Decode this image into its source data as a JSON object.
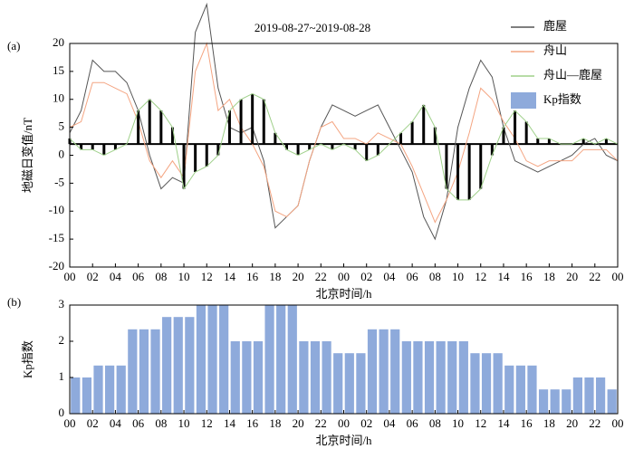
{
  "chart_data": [
    {
      "type": "line",
      "panel_label": "(a)",
      "title": "2019-08-27~2019-08-28",
      "ylabel": "地磁日变值/nT",
      "xlabel": "北京时间/h",
      "xlim": [
        0,
        48
      ],
      "ylim": [
        -20,
        20
      ],
      "yticks": [
        -20,
        -15,
        -10,
        -5,
        0,
        5,
        10,
        15,
        20
      ],
      "xticks": [
        {
          "value": 0,
          "label": "00"
        },
        {
          "value": 2,
          "label": "02"
        },
        {
          "value": 4,
          "label": "04"
        },
        {
          "value": 6,
          "label": "06"
        },
        {
          "value": 8,
          "label": "08"
        },
        {
          "value": 10,
          "label": "10"
        },
        {
          "value": 12,
          "label": "12"
        },
        {
          "value": 14,
          "label": "14"
        },
        {
          "value": 16,
          "label": "16"
        },
        {
          "value": 18,
          "label": "18"
        },
        {
          "value": 20,
          "label": "20"
        },
        {
          "value": 22,
          "label": "22"
        },
        {
          "value": 24,
          "label": "00"
        },
        {
          "value": 26,
          "label": "02"
        },
        {
          "value": 28,
          "label": "04"
        },
        {
          "value": 30,
          "label": "06"
        },
        {
          "value": 32,
          "label": "08"
        },
        {
          "value": 34,
          "label": "10"
        },
        {
          "value": 36,
          "label": "12"
        },
        {
          "value": 38,
          "label": "14"
        },
        {
          "value": 40,
          "label": "16"
        },
        {
          "value": 42,
          "label": "18"
        },
        {
          "value": 44,
          "label": "20"
        },
        {
          "value": 46,
          "label": "22"
        },
        {
          "value": 48,
          "label": "00"
        }
      ],
      "reference_line": 2,
      "x": [
        0,
        1,
        2,
        3,
        4,
        5,
        6,
        7,
        8,
        9,
        10,
        11,
        12,
        13,
        14,
        15,
        16,
        17,
        18,
        19,
        20,
        21,
        22,
        23,
        24,
        25,
        26,
        27,
        28,
        29,
        30,
        31,
        32,
        33,
        34,
        35,
        36,
        37,
        38,
        39,
        40,
        41,
        42,
        43,
        44,
        45,
        46,
        47,
        48
      ],
      "series": [
        {
          "name": "鹿屋",
          "color": "#555555",
          "values": [
            4,
            8,
            17,
            15,
            15,
            13,
            8,
            0,
            -6,
            -4,
            -5,
            22,
            27,
            12,
            5,
            4,
            5,
            -1,
            -13,
            -11,
            -9,
            -1,
            5,
            9,
            8,
            7,
            8,
            9,
            5,
            1,
            -3,
            -11,
            -15,
            -8,
            5,
            12,
            17,
            14,
            5,
            -1,
            -2,
            -3,
            -2,
            -1,
            0,
            2,
            3,
            0,
            -1
          ]
        },
        {
          "name": "舟山",
          "color": "#f4a582",
          "values": [
            5,
            6,
            13,
            13,
            12,
            11,
            6,
            -1,
            -4,
            -1,
            -4,
            15,
            20,
            8,
            10,
            5,
            2,
            -2,
            -10,
            -11,
            -9,
            -1,
            5,
            6,
            3,
            3,
            2,
            4,
            3,
            2,
            -2,
            -7,
            -12,
            -8,
            -3,
            4,
            12,
            10,
            6,
            3,
            -1,
            -2,
            -1,
            -1,
            -1,
            1,
            1,
            1,
            -1
          ]
        },
        {
          "name": "舟山—鹿屋",
          "color": "#9fd08a",
          "bars": true,
          "values": [
            1,
            -1,
            -1,
            -2,
            -1,
            0,
            6,
            8,
            6,
            3,
            -8,
            -5,
            -4,
            -2,
            6,
            8,
            9,
            8,
            2,
            -1,
            -2,
            -1,
            0,
            -1,
            0,
            -1,
            -3,
            -2,
            0,
            2,
            4,
            7,
            3,
            -8,
            -10,
            -10,
            -8,
            -2,
            3,
            6,
            4,
            1,
            1,
            0,
            0,
            1,
            0,
            1,
            0
          ]
        }
      ]
    },
    {
      "type": "bar",
      "panel_label": "(b)",
      "ylabel": "Kp指数",
      "xlabel": "北京时间/h",
      "xlim": [
        0,
        48
      ],
      "ylim": [
        0,
        3
      ],
      "yticks": [
        0,
        1,
        2,
        3
      ],
      "xticks": [
        {
          "value": 0,
          "label": "00"
        },
        {
          "value": 2,
          "label": "02"
        },
        {
          "value": 4,
          "label": "04"
        },
        {
          "value": 6,
          "label": "06"
        },
        {
          "value": 8,
          "label": "08"
        },
        {
          "value": 10,
          "label": "10"
        },
        {
          "value": 12,
          "label": "12"
        },
        {
          "value": 14,
          "label": "14"
        },
        {
          "value": 16,
          "label": "16"
        },
        {
          "value": 18,
          "label": "18"
        },
        {
          "value": 20,
          "label": "20"
        },
        {
          "value": 22,
          "label": "22"
        },
        {
          "value": 24,
          "label": "00"
        },
        {
          "value": 26,
          "label": "02"
        },
        {
          "value": 28,
          "label": "04"
        },
        {
          "value": 30,
          "label": "06"
        },
        {
          "value": 32,
          "label": "08"
        },
        {
          "value": 34,
          "label": "10"
        },
        {
          "value": 36,
          "label": "12"
        },
        {
          "value": 38,
          "label": "14"
        },
        {
          "value": 40,
          "label": "16"
        },
        {
          "value": 42,
          "label": "18"
        },
        {
          "value": 44,
          "label": "20"
        },
        {
          "value": 46,
          "label": "22"
        },
        {
          "value": 48,
          "label": "00"
        }
      ],
      "x": [
        0,
        1,
        2,
        3,
        4,
        5,
        6,
        7,
        8,
        9,
        10,
        11,
        12,
        13,
        14,
        15,
        16,
        17,
        18,
        19,
        20,
        21,
        22,
        23,
        24,
        25,
        26,
        27,
        28,
        29,
        30,
        31,
        32,
        33,
        34,
        35,
        36,
        37,
        38,
        39,
        40,
        41,
        42,
        43,
        44,
        45,
        46,
        47
      ],
      "series": [
        {
          "name": "Kp指数",
          "color": "#8eaadb",
          "values": [
            1,
            1,
            1.33,
            1.33,
            1.33,
            2.33,
            2.33,
            2.33,
            2.67,
            2.67,
            2.67,
            3,
            3,
            3,
            2,
            2,
            2,
            3,
            3,
            3,
            2,
            2,
            2,
            1.67,
            1.67,
            1.67,
            2.33,
            2.33,
            2.33,
            2,
            2,
            2,
            2,
            2,
            2,
            1.67,
            1.67,
            1.67,
            1.33,
            1.33,
            1.33,
            0.67,
            0.67,
            0.67,
            1,
            1,
            1,
            0.67
          ]
        }
      ]
    }
  ]
}
